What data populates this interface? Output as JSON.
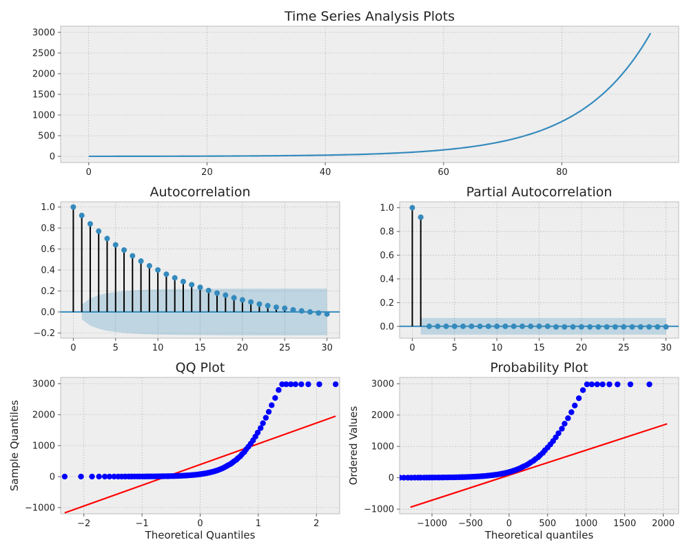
{
  "chart_data": [
    {
      "id": "ts",
      "type": "line",
      "title": "Time Series Analysis Plots",
      "xlabel": "",
      "ylabel": "",
      "xlim": [
        -4.75,
        99.75
      ],
      "ylim": [
        -150,
        3150
      ],
      "xticks": [
        0,
        20,
        40,
        60,
        80
      ],
      "yticks": [
        0,
        500,
        1000,
        1500,
        2000,
        2500,
        3000
      ],
      "grid": true,
      "series": [
        {
          "color": "#348abd",
          "x": [
            0,
            95
          ],
          "y": [
            1,
            2980
          ],
          "form": "exponential"
        }
      ]
    },
    {
      "id": "acf",
      "type": "stem",
      "title": "Autocorrelation",
      "xlim": [
        -1.5,
        31.5
      ],
      "ylim": [
        -0.25,
        1.05
      ],
      "xticks": [
        0,
        5,
        10,
        15,
        20,
        25,
        30
      ],
      "yticks": [
        -0.2,
        0.0,
        0.2,
        0.4,
        0.6,
        0.8,
        1.0
      ],
      "grid": true,
      "lags": [
        0,
        1,
        2,
        3,
        4,
        5,
        6,
        7,
        8,
        9,
        10,
        11,
        12,
        13,
        14,
        15,
        16,
        17,
        18,
        19,
        20,
        21,
        22,
        23,
        24,
        25,
        26,
        27,
        28,
        29,
        30
      ],
      "values": [
        1.0,
        0.92,
        0.84,
        0.77,
        0.7,
        0.64,
        0.59,
        0.535,
        0.485,
        0.44,
        0.4,
        0.36,
        0.325,
        0.29,
        0.26,
        0.235,
        0.205,
        0.18,
        0.16,
        0.135,
        0.115,
        0.095,
        0.075,
        0.06,
        0.045,
        0.035,
        0.02,
        0.01,
        0.0,
        -0.01,
        -0.02
      ],
      "confidence_band": {
        "lags": [
          1,
          2,
          3,
          4,
          5,
          6,
          7,
          8,
          9,
          10,
          11,
          12,
          13,
          14,
          15,
          16,
          17,
          18,
          19,
          20,
          21,
          22,
          23,
          24,
          25,
          26,
          27,
          28,
          29,
          30
        ],
        "upper": [
          0.07,
          0.13,
          0.16,
          0.18,
          0.19,
          0.2,
          0.205,
          0.21,
          0.213,
          0.215,
          0.217,
          0.218,
          0.219,
          0.22,
          0.22,
          0.221,
          0.221,
          0.222,
          0.222,
          0.222,
          0.223,
          0.223,
          0.223,
          0.223,
          0.223,
          0.223,
          0.223,
          0.223,
          0.223,
          0.223
        ]
      },
      "marker_color": "#348abd",
      "stem_color": "#000000"
    },
    {
      "id": "pacf",
      "type": "stem",
      "title": "Partial Autocorrelation",
      "xlim": [
        -1.5,
        31.5
      ],
      "ylim": [
        -0.1,
        1.05
      ],
      "xticks": [
        0,
        5,
        10,
        15,
        20,
        25,
        30
      ],
      "yticks": [
        0.0,
        0.2,
        0.4,
        0.6,
        0.8,
        1.0
      ],
      "grid": true,
      "lags": [
        0,
        1,
        2,
        3,
        4,
        5,
        6,
        7,
        8,
        9,
        10,
        11,
        12,
        13,
        14,
        15,
        16,
        17,
        18,
        19,
        20,
        21,
        22,
        23,
        24,
        25,
        26,
        27,
        28,
        29,
        30
      ],
      "values": [
        1.0,
        0.92,
        0.0,
        0.0,
        0.0,
        0.0,
        0.0,
        0.0,
        0.0,
        0.0,
        0.0,
        0.0,
        0.0,
        0.0,
        0.0,
        0.0,
        0.0,
        -0.005,
        -0.005,
        -0.005,
        -0.005,
        -0.005,
        -0.005,
        -0.005,
        -0.005,
        -0.005,
        -0.005,
        -0.005,
        -0.005,
        -0.005,
        -0.005
      ],
      "confidence_band": {
        "from": 1,
        "to": 30,
        "upper": 0.07
      },
      "marker_color": "#348abd",
      "stem_color": "#000000"
    },
    {
      "id": "qq",
      "type": "scatter",
      "title": "QQ Plot",
      "xlabel": "Theoretical Quantiles",
      "ylabel": "Sample Quantiles",
      "xlim": [
        -2.4,
        2.4
      ],
      "ylim": [
        -1200,
        3200
      ],
      "xticks": [
        -2,
        -1,
        0,
        1,
        2
      ],
      "yticks": [
        -1000,
        0,
        1000,
        2000,
        3000
      ],
      "grid": true,
      "point_color": "#0000ff",
      "line_color": "#ff0000",
      "points": {
        "x": [
          -2.33,
          -2.05,
          -1.86,
          -1.74,
          -1.64,
          -1.56,
          -1.48,
          -1.41,
          -1.35,
          -1.29,
          -1.23,
          -1.18,
          -1.13,
          -1.08,
          -1.04,
          -0.99,
          -0.95,
          -0.91,
          -0.87,
          -0.83,
          -0.79,
          -0.76,
          -0.72,
          -0.69,
          -0.65,
          -0.62,
          -0.58,
          -0.55,
          -0.52,
          -0.48,
          -0.45,
          -0.42,
          -0.39,
          -0.36,
          -0.33,
          -0.3,
          -0.27,
          -0.24,
          -0.21,
          -0.18,
          -0.15,
          -0.12,
          -0.09,
          -0.06,
          -0.03,
          0.0,
          0.03,
          0.06,
          0.09,
          0.12,
          0.15,
          0.18,
          0.21,
          0.24,
          0.27,
          0.3,
          0.33,
          0.36,
          0.39,
          0.42,
          0.45,
          0.48,
          0.52,
          0.55,
          0.58,
          0.62,
          0.65,
          0.69,
          0.72,
          0.76,
          0.79,
          0.83,
          0.87,
          0.91,
          0.95,
          0.99,
          1.04,
          1.08,
          1.13,
          1.18,
          1.23,
          1.29,
          1.35,
          1.41,
          1.48,
          1.56,
          1.64,
          1.74,
          1.86,
          2.05,
          2.33
        ],
        "y": [
          1,
          1,
          1,
          1,
          2,
          2,
          2,
          2,
          2,
          3,
          3,
          3,
          4,
          4,
          4,
          5,
          5,
          6,
          6,
          7,
          8,
          8,
          9,
          10,
          11,
          12,
          13,
          14,
          15,
          17,
          19,
          20,
          22,
          25,
          27,
          30,
          33,
          36,
          40,
          44,
          48,
          53,
          58,
          64,
          71,
          78,
          86,
          95,
          104,
          115,
          127,
          140,
          154,
          169,
          186,
          205,
          226,
          249,
          274,
          302,
          333,
          367,
          404,
          445,
          490,
          540,
          595,
          655,
          722,
          795,
          876,
          965,
          1063,
          1170,
          1290,
          1420,
          1565,
          1724,
          1899,
          2091,
          2304,
          2537,
          2795,
          2980,
          2980,
          2980,
          2980,
          2980,
          2980,
          2980,
          2980
        ]
      },
      "line": {
        "x": [
          -2.33,
          2.33
        ],
        "y": [
          -1170,
          1950
        ]
      }
    },
    {
      "id": "prob",
      "type": "scatter",
      "title": "Probability Plot",
      "xlabel": "Theoretical quantiles",
      "ylabel": "Ordered Values",
      "xlim": [
        -1420,
        2200
      ],
      "ylim": [
        -1150,
        3200
      ],
      "xticks": [
        -1000,
        -500,
        0,
        500,
        1000,
        1500,
        2000
      ],
      "yticks": [
        -1000,
        0,
        1000,
        2000,
        3000
      ],
      "grid": true,
      "point_color": "#0000ff",
      "line_color": "#ff0000"
    }
  ]
}
